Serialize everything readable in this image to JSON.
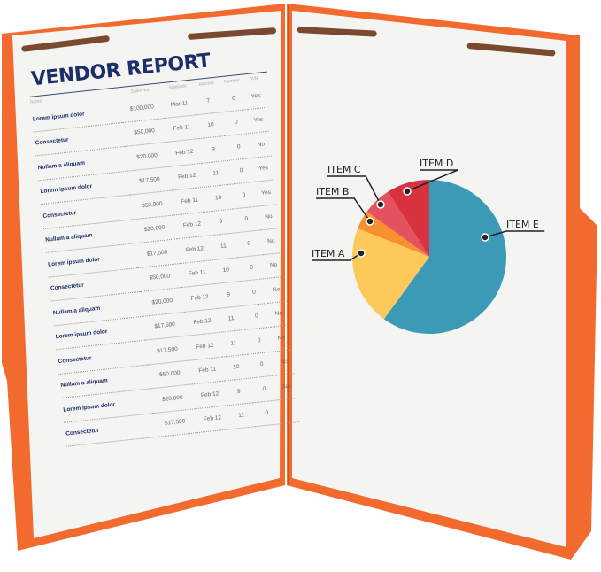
{
  "report": {
    "title": "VENDOR REPORT",
    "columns": [
      "Name",
      "SalePrice",
      "SaleDate",
      "Amount",
      "Number",
      "Y/N"
    ],
    "rows": [
      [
        "Lorem ipsum dolor",
        "$100,000",
        "Mar 11",
        "7",
        "0",
        "Yes"
      ],
      [
        "Consectetur",
        "$50,000",
        "Feb 11",
        "10",
        "0",
        "Yes"
      ],
      [
        "Nullam a aliquam",
        "$20,000",
        "Feb 12",
        "9",
        "0",
        "No"
      ],
      [
        "Lorem ipsum dolor",
        "$17,500",
        "Feb 12",
        "11",
        "0",
        "Yes"
      ],
      [
        "Consectetur",
        "$50,000",
        "Feb 11",
        "10",
        "0",
        "Yes"
      ],
      [
        "Nullam a aliquam",
        "$20,000",
        "Feb 12",
        "9",
        "0",
        "No"
      ],
      [
        "Lorem ipsum dolor",
        "$17,500",
        "Feb 12",
        "11",
        "0",
        "No"
      ],
      [
        "Consectetur",
        "$50,000",
        "Feb 11",
        "10",
        "0",
        "No"
      ],
      [
        "Nullam a aliquam",
        "$20,000",
        "Feb 12",
        "9",
        "0",
        "No"
      ],
      [
        "Lorem ipsum dolor",
        "$17,500",
        "Feb 12",
        "11",
        "0",
        "No"
      ],
      [
        "Consectetur",
        "$17,500",
        "Feb 12",
        "11",
        "0",
        "No"
      ],
      [
        "Nullam a aliquam",
        "$50,000",
        "Feb 11",
        "10",
        "0",
        "No"
      ],
      [
        "Lorem ipsum dolor",
        "$20,000",
        "Feb 12",
        "9",
        "0",
        "No"
      ],
      [
        "Consectetur",
        "$17,500",
        "Feb 12",
        "11",
        "0",
        ""
      ]
    ]
  },
  "colors": {
    "folder": "#f26a2e",
    "paper": "#f3f3f1",
    "fastener": "#7a4a2e",
    "title": "#1d2f6b"
  },
  "chart_data": {
    "type": "pie",
    "labels": [
      "ITEM E",
      "ITEM A",
      "ITEM B",
      "ITEM C",
      "ITEM D"
    ],
    "values": [
      60,
      21,
      4,
      6,
      9
    ],
    "colors": [
      "#3b9ab5",
      "#fcc95a",
      "#f7922f",
      "#e4515f",
      "#d9323f"
    ]
  }
}
